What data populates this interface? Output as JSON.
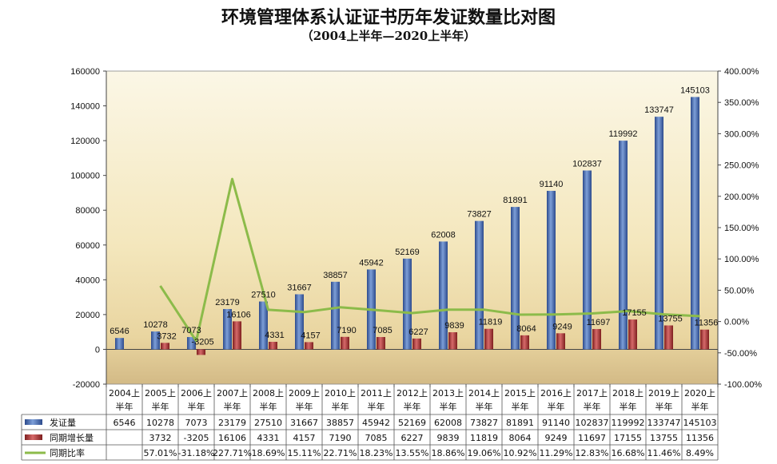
{
  "title": "环境管理体系认证证书历年发证数量比对图",
  "subtitle": "（2004上半年—2020上半年）",
  "chart_data": {
    "type": "bar",
    "categories": [
      "2004上半年",
      "2005上半年",
      "2006上半年",
      "2007上半年",
      "2008上半年",
      "2009上半年",
      "2010上半年",
      "2011上半年",
      "2012上半年",
      "2013上半年",
      "2014上半年",
      "2015上半年",
      "2016上半年",
      "2017上半年",
      "2018上半年",
      "2019上半年",
      "2020上半年"
    ],
    "categories_line1": [
      "2004上",
      "2005上",
      "2006上",
      "2007上",
      "2008上",
      "2009上",
      "2010上",
      "2011上",
      "2012上",
      "2013上",
      "2014上",
      "2015上",
      "2016上",
      "2017上",
      "2018上",
      "2019上",
      "2020上"
    ],
    "categories_line2": "半年",
    "series": [
      {
        "name": "发证量",
        "type": "bar",
        "axis": "left",
        "color": "#3b5fa8",
        "values": [
          6546,
          10278,
          7073,
          23179,
          27510,
          31667,
          38857,
          45942,
          52169,
          62008,
          73827,
          81891,
          91140,
          102837,
          119992,
          133747,
          145103
        ]
      },
      {
        "name": "同期增长量",
        "type": "bar",
        "axis": "left",
        "color": "#a02c2c",
        "values": [
          null,
          3732,
          -3205,
          16106,
          4331,
          4157,
          7190,
          7085,
          6227,
          9839,
          11819,
          8064,
          9249,
          11697,
          17155,
          13755,
          11356
        ]
      },
      {
        "name": "同期比率",
        "type": "line",
        "axis": "right",
        "color": "#8cbb4a",
        "values": [
          null,
          57.01,
          -31.18,
          227.71,
          18.69,
          15.11,
          22.71,
          18.23,
          13.55,
          18.86,
          19.06,
          10.92,
          11.29,
          12.83,
          16.68,
          11.46,
          8.49
        ],
        "labels": [
          "",
          "57.01%",
          "-31.18%",
          "227.71%",
          "18.69%",
          "15.11%",
          "22.71%",
          "18.23%",
          "13.55%",
          "18.86%",
          "19.06%",
          "10.92%",
          "11.29%",
          "12.83%",
          "16.68%",
          "11.46%",
          "8.49%"
        ]
      }
    ],
    "y_left": {
      "min": -20000,
      "max": 160000,
      "step": 20000,
      "ticks": [
        "-20000",
        "0",
        "20000",
        "40000",
        "60000",
        "80000",
        "100000",
        "120000",
        "140000",
        "160000"
      ]
    },
    "y_right": {
      "min": -100,
      "max": 400,
      "step": 50,
      "ticks": [
        "-100.00%",
        "-50.00%",
        "0.00%",
        "50.00%",
        "100.00%",
        "150.00%",
        "200.00%",
        "250.00%",
        "300.00%",
        "350.00%",
        "400.00%"
      ]
    },
    "bar_data_labels": {
      "发证量": [
        "6546",
        "10278",
        "7073",
        "23179",
        "27510",
        "31667",
        "38857",
        "45942",
        "52169",
        "62008",
        "73827",
        "81891",
        "91140",
        "102837",
        "119992",
        "133747",
        "145103"
      ],
      "同期增长量": [
        "",
        "3732",
        "-3205",
        "16106",
        "4331",
        "4157",
        "7190",
        "7085",
        "6227",
        "9839",
        "11819",
        "8064",
        "9249",
        "11697",
        "17155",
        "13755",
        "11356"
      ]
    },
    "grid": false,
    "legend": "data-table-below"
  }
}
